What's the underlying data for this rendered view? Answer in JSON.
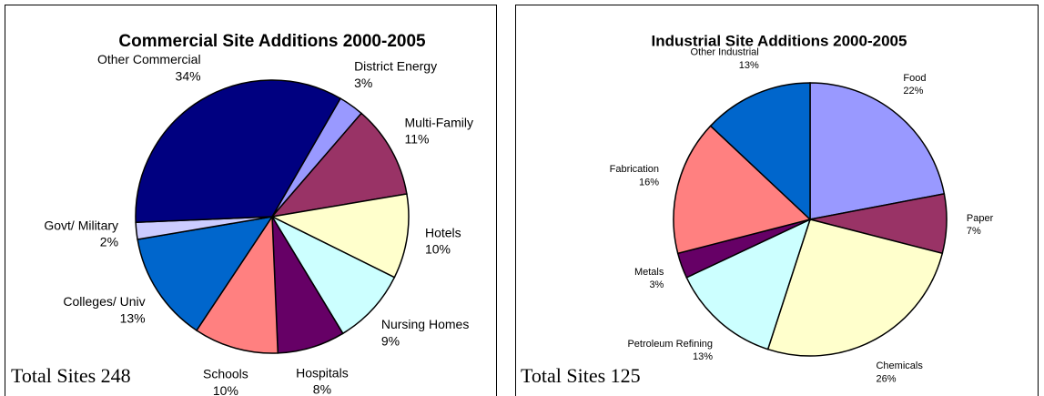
{
  "chart_data": [
    {
      "type": "pie",
      "title": "Commercial Site Additions 2000-2005",
      "categories": [
        "District Energy",
        "Multi-Family",
        "Hotels",
        "Nursing Homes",
        "Hospitals",
        "Schools",
        "Colleges/ Univ",
        "Govt/ Military",
        "Other Commercial"
      ],
      "values": [
        3,
        11,
        10,
        9,
        8,
        10,
        13,
        2,
        34
      ],
      "value_labels": [
        "3%",
        "11%",
        "10%",
        "9%",
        "8%",
        "10%",
        "13%",
        "2%",
        "34%"
      ],
      "colors": [
        "#9999ff",
        "#993366",
        "#ffffcc",
        "#ccffff",
        "#660066",
        "#ff8080",
        "#0066cc",
        "#ccccff",
        "#000080"
      ],
      "annotation": "Total Sites 248"
    },
    {
      "type": "pie",
      "title": "Industrial Site Additions 2000-2005",
      "categories": [
        "Food",
        "Paper",
        "Chemicals",
        "Petroleum Refining",
        "Metals",
        "Fabrication",
        "Other Industrial"
      ],
      "values": [
        22,
        7,
        26,
        13,
        3,
        16,
        13
      ],
      "value_labels": [
        "22%",
        "7%",
        "26%",
        "13%",
        "3%",
        "16%",
        "13%"
      ],
      "colors": [
        "#9999ff",
        "#993366",
        "#ffffcc",
        "#ccffff",
        "#660066",
        "#ff8080",
        "#0066cc"
      ],
      "annotation": "Total Sites 125"
    }
  ]
}
